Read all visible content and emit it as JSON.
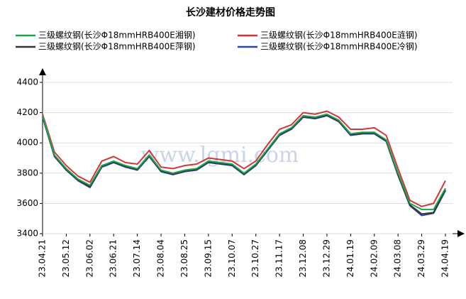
{
  "chart_data": {
    "type": "line",
    "title": "长沙建材价格走势图",
    "watermark": "www.lgmi.com",
    "categories": [
      "23.04.21",
      null,
      "23.05.12",
      null,
      "23.06.02",
      null,
      "23.06.21",
      null,
      "23.07.14",
      null,
      "23.08.04",
      null,
      "23.08.25",
      null,
      "23.09.15",
      null,
      "23.10.07",
      null,
      "23.10.27",
      null,
      "23.11.17",
      null,
      "23.12.08",
      null,
      "23.12.29",
      null,
      "24.01.19",
      null,
      "24.02.09",
      null,
      "24.03.08",
      null,
      "24.03.29",
      null,
      "24.04.19"
    ],
    "series": [
      {
        "name": "三级螺纹钢(长沙Φ18mmHRB400E湘钢)",
        "color": "#1aa64a",
        "values": [
          4180,
          3920,
          3830,
          3760,
          3720,
          3850,
          3880,
          3850,
          3830,
          3920,
          3820,
          3800,
          3820,
          3830,
          3880,
          3870,
          3860,
          3800,
          3860,
          3960,
          4060,
          4100,
          4180,
          4170,
          4190,
          4150,
          4060,
          4070,
          4070,
          4020,
          3800,
          3600,
          3560,
          3560,
          3700
        ]
      },
      {
        "name": "三级螺纹钢(长沙Φ18mmHRB400E涟钢)",
        "color": "#d2363a",
        "values": [
          4190,
          3940,
          3850,
          3780,
          3740,
          3880,
          3910,
          3870,
          3860,
          3950,
          3840,
          3830,
          3850,
          3860,
          3900,
          3890,
          3880,
          3830,
          3880,
          3990,
          4090,
          4120,
          4200,
          4190,
          4210,
          4170,
          4090,
          4090,
          4100,
          4050,
          3830,
          3620,
          3580,
          3600,
          3750
        ]
      },
      {
        "name": "三级螺纹钢(长沙Φ18mmHRB400E萍钢)",
        "color": "#333333",
        "values": [
          4175,
          3915,
          3825,
          3755,
          3710,
          3845,
          3875,
          3845,
          3825,
          3915,
          3815,
          3795,
          3815,
          3825,
          3875,
          3865,
          3855,
          3795,
          3855,
          3955,
          4055,
          4095,
          4175,
          4165,
          4185,
          4145,
          4055,
          4065,
          4065,
          4015,
          3790,
          3590,
          3530,
          3540,
          3690
        ]
      },
      {
        "name": "三级螺纹钢(长沙Φ18mmHRB400E冷钢)",
        "color": "#2a45a8",
        "values": [
          4170,
          3910,
          3820,
          3750,
          3705,
          3840,
          3870,
          3840,
          3820,
          3910,
          3810,
          3790,
          3810,
          3820,
          3870,
          3860,
          3850,
          3790,
          3850,
          3950,
          4050,
          4090,
          4170,
          4160,
          4180,
          4140,
          4050,
          4060,
          4060,
          4010,
          3785,
          3585,
          3520,
          3535,
          3685
        ]
      }
    ],
    "ylim": [
      3400,
      4400
    ],
    "yticks": [
      3400,
      3600,
      3800,
      4000,
      4200,
      4400
    ],
    "grid": true
  }
}
